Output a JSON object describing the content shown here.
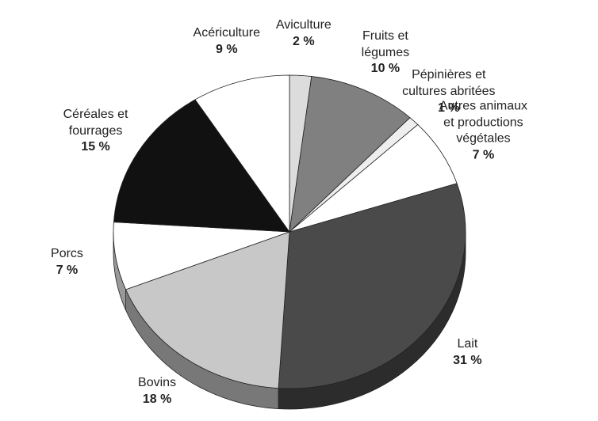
{
  "chart_data": {
    "type": "pie",
    "categories": [
      "Aviculture",
      "Fruits et légumes",
      "Pépinières et cultures abritées",
      "Autres animaux et productions végétales",
      "Lait",
      "Bovins",
      "Porcs",
      "Céréales et fourrages",
      "Acériculture"
    ],
    "values": [
      2,
      10,
      1,
      7,
      31,
      18,
      7,
      15,
      9
    ],
    "value_labels": [
      "2 %",
      "10 %",
      "1 %",
      "7 %",
      "31 %",
      "18 %",
      "7 %",
      "15 %",
      "9 %"
    ],
    "colors": [
      "#dcdcdc",
      "#808080",
      "#eeeeee",
      "#ffffff",
      "#4a4a4a",
      "#c8c8c8",
      "#ffffff",
      "#111111",
      "#ffffff"
    ]
  }
}
